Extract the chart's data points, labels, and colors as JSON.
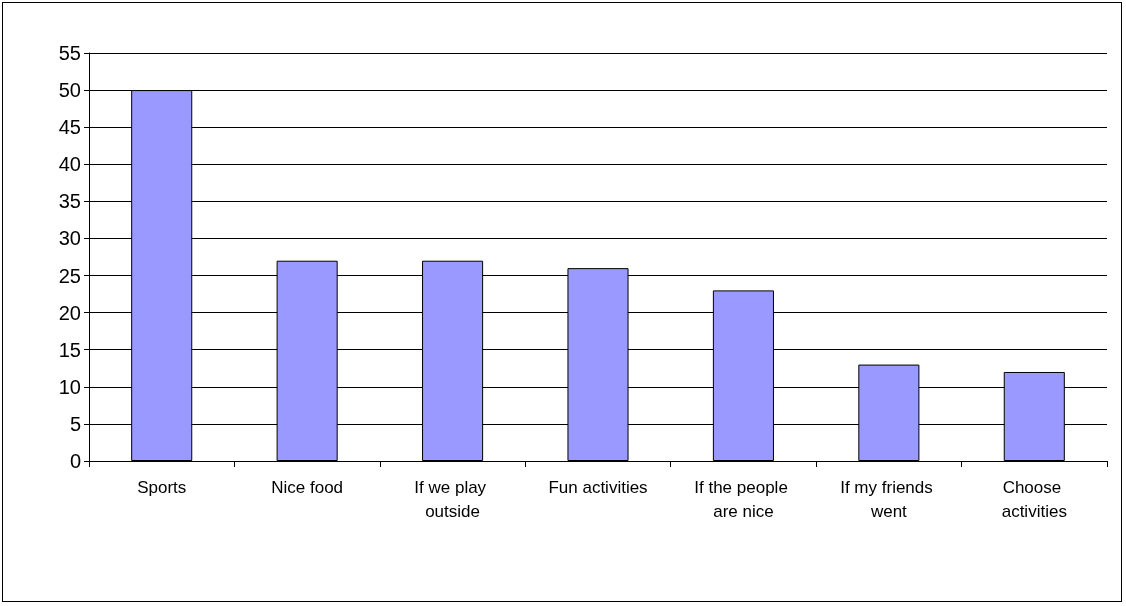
{
  "chart_data": {
    "type": "bar",
    "categories": [
      "Sports",
      "Nice food",
      "If we play outside",
      "Fun activities",
      "If the people are nice",
      "If my friends went",
      "Choose activities"
    ],
    "values": [
      50,
      27,
      27,
      26,
      23,
      13,
      12
    ],
    "color": "#9999ff",
    "ylim": [
      0,
      55
    ],
    "yticks": [
      0,
      5,
      10,
      15,
      20,
      25,
      30,
      35,
      40,
      45,
      50,
      55
    ],
    "grid": "y"
  }
}
